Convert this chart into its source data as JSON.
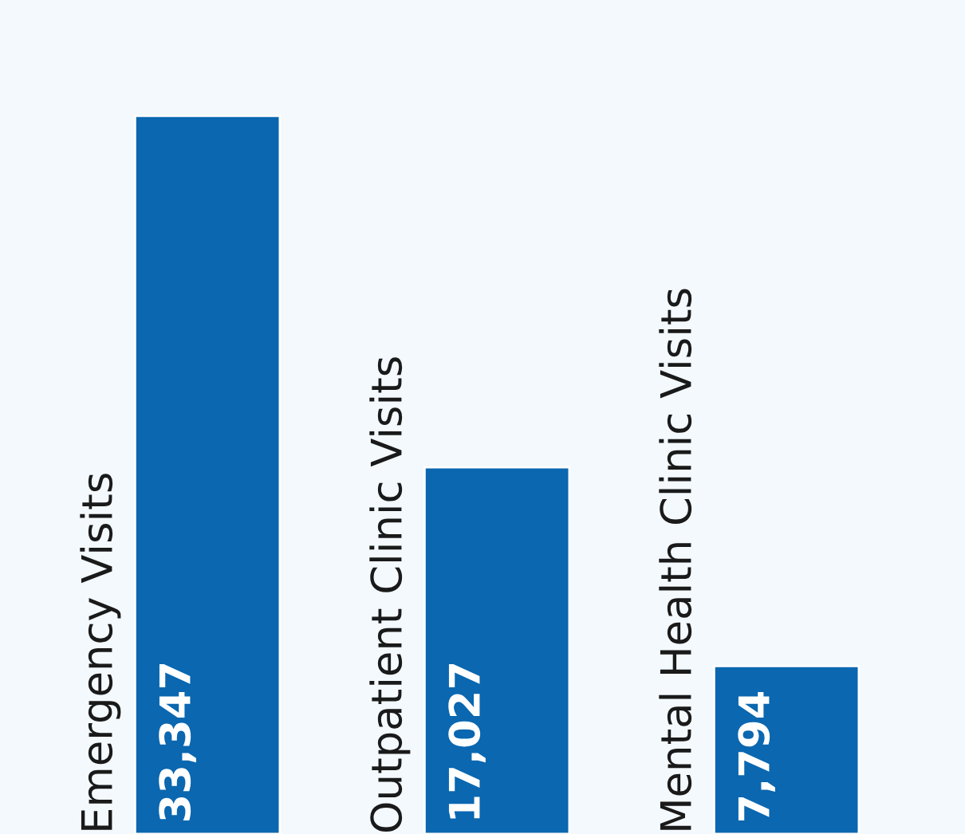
{
  "chart_data": {
    "type": "bar",
    "categories": [
      "Emergency Visits",
      "Outpatient Clinic Visits",
      "Mental Health Clinic Visits"
    ],
    "values": [
      33347,
      17027,
      7794
    ],
    "value_labels": [
      "33,347",
      "17,027",
      "7,794"
    ],
    "color": "#0a67b0"
  }
}
